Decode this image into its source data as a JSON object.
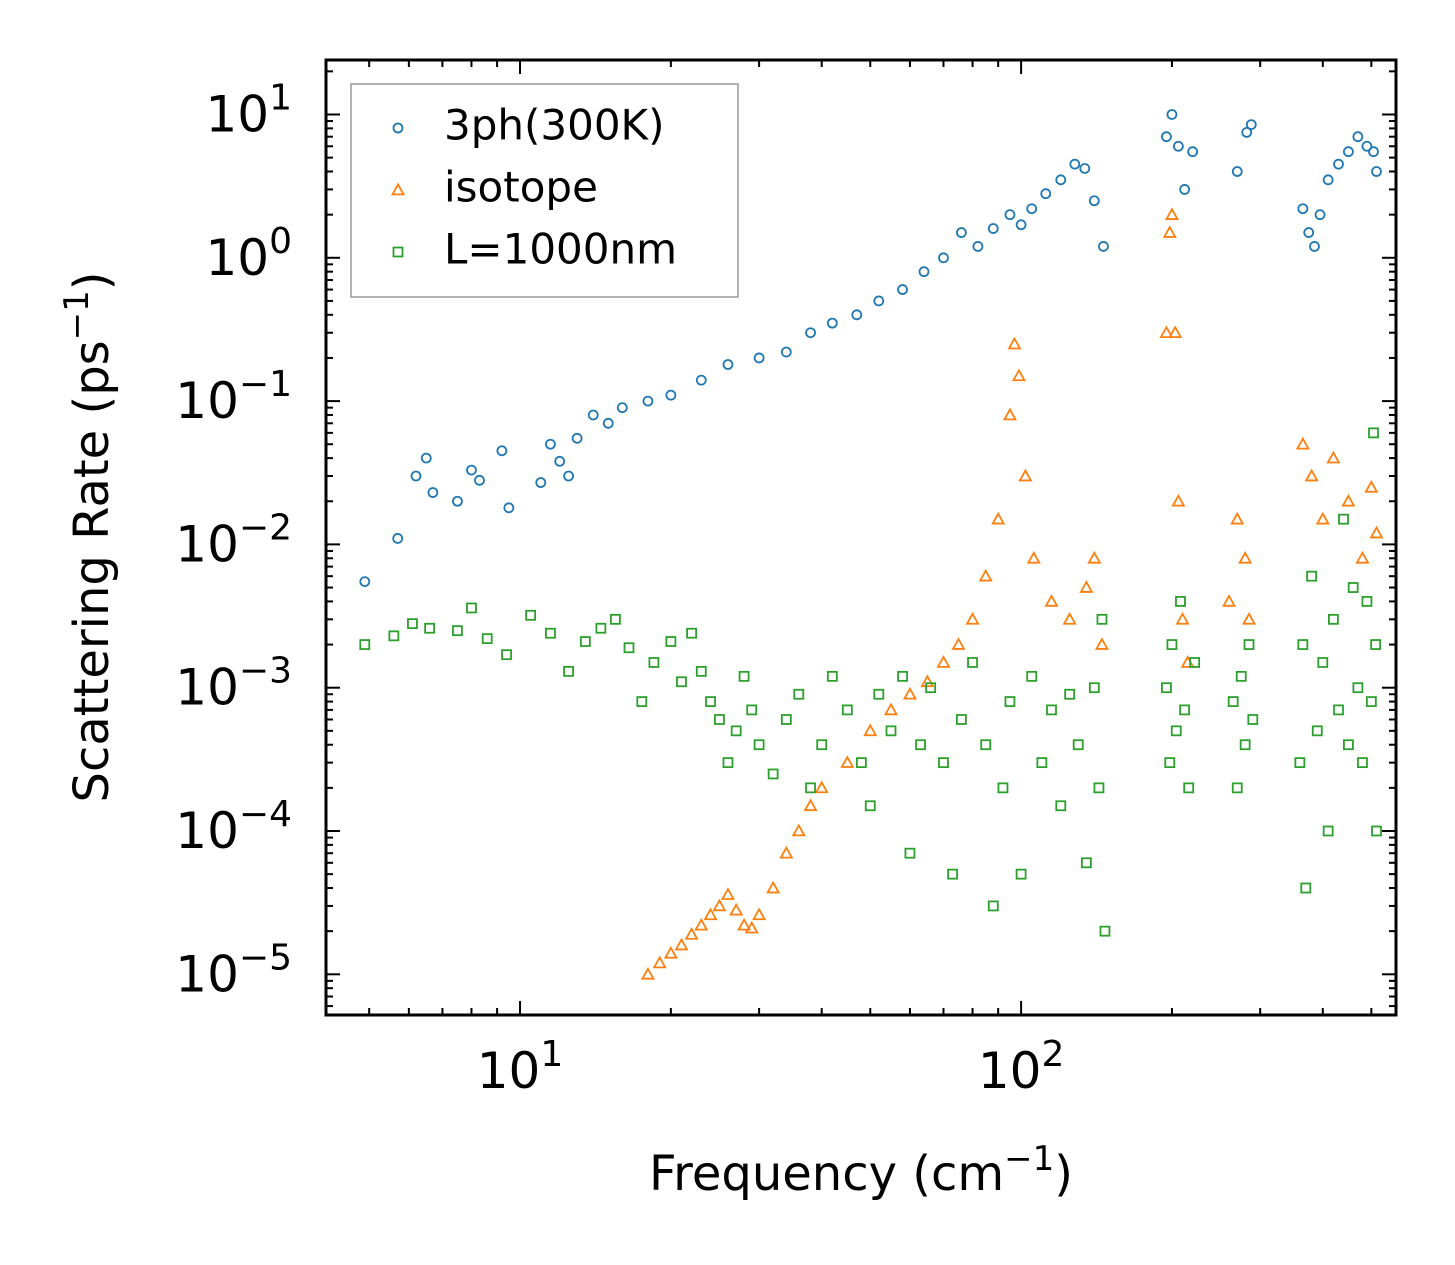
{
  "chart_data": {
    "type": "scatter",
    "xscale": "log",
    "yscale": "log",
    "xlim": [
      4.1,
      560
    ],
    "ylim": [
      5.2e-06,
      24
    ],
    "xlabel": {
      "text": "Frequency (cm",
      "sup": "−1",
      "close": ")"
    },
    "ylabel": {
      "text": "Scattering Rate (ps",
      "sup": "−1",
      "close": ")"
    },
    "x_ticks": [
      {
        "value": 10,
        "base": "10",
        "exp": "1"
      },
      {
        "value": 100,
        "base": "10",
        "exp": "2"
      }
    ],
    "y_ticks": [
      {
        "value": 10,
        "base": "10",
        "exp": "1"
      },
      {
        "value": 1,
        "base": "10",
        "exp": "0"
      },
      {
        "value": 0.1,
        "base": "10",
        "exp": "−1"
      },
      {
        "value": 0.01,
        "base": "10",
        "exp": "−2"
      },
      {
        "value": 0.001,
        "base": "10",
        "exp": "−3"
      },
      {
        "value": 0.0001,
        "base": "10",
        "exp": "−4"
      },
      {
        "value": 1e-05,
        "base": "10",
        "exp": "−5"
      }
    ],
    "legend_position": "top-left",
    "series": [
      {
        "name": "3ph(300K)",
        "marker": "circle",
        "color": "#1f77b4",
        "points": [
          [
            4.9,
            0.0055
          ],
          [
            5.7,
            0.011
          ],
          [
            6.2,
            0.03
          ],
          [
            6.5,
            0.04
          ],
          [
            6.7,
            0.023
          ],
          [
            7.5,
            0.02
          ],
          [
            8.0,
            0.033
          ],
          [
            8.3,
            0.028
          ],
          [
            9.2,
            0.045
          ],
          [
            9.5,
            0.018
          ],
          [
            11,
            0.027
          ],
          [
            11.5,
            0.05
          ],
          [
            12,
            0.038
          ],
          [
            12.5,
            0.03
          ],
          [
            13,
            0.055
          ],
          [
            14,
            0.08
          ],
          [
            15,
            0.07
          ],
          [
            16,
            0.09
          ],
          [
            18,
            0.1
          ],
          [
            20,
            0.11
          ],
          [
            23,
            0.14
          ],
          [
            26,
            0.18
          ],
          [
            30,
            0.2
          ],
          [
            34,
            0.22
          ],
          [
            38,
            0.3
          ],
          [
            42,
            0.35
          ],
          [
            47,
            0.4
          ],
          [
            52,
            0.5
          ],
          [
            58,
            0.6
          ],
          [
            64,
            0.8
          ],
          [
            70,
            1.0
          ],
          [
            76,
            1.5
          ],
          [
            82,
            1.2
          ],
          [
            88,
            1.6
          ],
          [
            95,
            2.0
          ],
          [
            100,
            1.7
          ],
          [
            105,
            2.2
          ],
          [
            112,
            2.8
          ],
          [
            120,
            3.5
          ],
          [
            128,
            4.5
          ],
          [
            134,
            4.2
          ],
          [
            140,
            2.5
          ],
          [
            146,
            1.2
          ],
          [
            195,
            7.0
          ],
          [
            200,
            10.0
          ],
          [
            206,
            6.0
          ],
          [
            212,
            3.0
          ],
          [
            220,
            5.5
          ],
          [
            270,
            4.0
          ],
          [
            282,
            7.5
          ],
          [
            288,
            8.5
          ],
          [
            365,
            2.2
          ],
          [
            375,
            1.5
          ],
          [
            385,
            1.2
          ],
          [
            395,
            2.0
          ],
          [
            410,
            3.5
          ],
          [
            430,
            4.5
          ],
          [
            450,
            5.5
          ],
          [
            470,
            7.0
          ],
          [
            490,
            6.0
          ],
          [
            505,
            5.5
          ],
          [
            512,
            4.0
          ]
        ]
      },
      {
        "name": "isotope",
        "marker": "triangle",
        "color": "#ff7f0e",
        "points": [
          [
            18,
            1e-05
          ],
          [
            19,
            1.2e-05
          ],
          [
            20,
            1.4e-05
          ],
          [
            21,
            1.6e-05
          ],
          [
            22,
            1.9e-05
          ],
          [
            23,
            2.2e-05
          ],
          [
            24,
            2.6e-05
          ],
          [
            25,
            3e-05
          ],
          [
            26,
            3.6e-05
          ],
          [
            27,
            2.8e-05
          ],
          [
            28,
            2.2e-05
          ],
          [
            29,
            2.1e-05
          ],
          [
            30,
            2.6e-05
          ],
          [
            32,
            4e-05
          ],
          [
            34,
            7e-05
          ],
          [
            36,
            0.0001
          ],
          [
            38,
            0.00015
          ],
          [
            40,
            0.0002
          ],
          [
            45,
            0.0003
          ],
          [
            50,
            0.0005
          ],
          [
            55,
            0.0007
          ],
          [
            60,
            0.0009
          ],
          [
            65,
            0.0011
          ],
          [
            70,
            0.0015
          ],
          [
            75,
            0.002
          ],
          [
            80,
            0.003
          ],
          [
            85,
            0.006
          ],
          [
            90,
            0.015
          ],
          [
            95,
            0.08
          ],
          [
            97,
            0.25
          ],
          [
            99,
            0.15
          ],
          [
            102,
            0.03
          ],
          [
            106,
            0.008
          ],
          [
            115,
            0.004
          ],
          [
            125,
            0.003
          ],
          [
            135,
            0.005
          ],
          [
            140,
            0.008
          ],
          [
            145,
            0.002
          ],
          [
            195,
            0.3
          ],
          [
            198,
            1.5
          ],
          [
            200,
            2.0
          ],
          [
            203,
            0.3
          ],
          [
            206,
            0.02
          ],
          [
            210,
            0.003
          ],
          [
            215,
            0.0015
          ],
          [
            260,
            0.004
          ],
          [
            270,
            0.015
          ],
          [
            280,
            0.008
          ],
          [
            285,
            0.003
          ],
          [
            365,
            0.05
          ],
          [
            380,
            0.03
          ],
          [
            400,
            0.015
          ],
          [
            420,
            0.04
          ],
          [
            450,
            0.02
          ],
          [
            480,
            0.008
          ],
          [
            500,
            0.025
          ],
          [
            512,
            0.012
          ]
        ]
      },
      {
        "name": "L=1000nm",
        "marker": "square",
        "color": "#2ca02c",
        "points": [
          [
            4.9,
            0.002
          ],
          [
            5.6,
            0.0023
          ],
          [
            6.1,
            0.0028
          ],
          [
            6.6,
            0.0026
          ],
          [
            7.5,
            0.0025
          ],
          [
            8.0,
            0.0036
          ],
          [
            8.6,
            0.0022
          ],
          [
            9.4,
            0.0017
          ],
          [
            10.5,
            0.0032
          ],
          [
            11.5,
            0.0024
          ],
          [
            12.5,
            0.0013
          ],
          [
            13.5,
            0.0021
          ],
          [
            14.5,
            0.0026
          ],
          [
            15.5,
            0.003
          ],
          [
            16.5,
            0.0019
          ],
          [
            17.5,
            0.0008
          ],
          [
            18.5,
            0.0015
          ],
          [
            20,
            0.0021
          ],
          [
            21,
            0.0011
          ],
          [
            22,
            0.0024
          ],
          [
            23,
            0.0013
          ],
          [
            24,
            0.0008
          ],
          [
            25,
            0.0006
          ],
          [
            26,
            0.0003
          ],
          [
            27,
            0.0005
          ],
          [
            28,
            0.0012
          ],
          [
            29,
            0.0007
          ],
          [
            30,
            0.0004
          ],
          [
            32,
            0.00025
          ],
          [
            34,
            0.0006
          ],
          [
            36,
            0.0009
          ],
          [
            38,
            0.0002
          ],
          [
            40,
            0.0004
          ],
          [
            42,
            0.0012
          ],
          [
            45,
            0.0007
          ],
          [
            48,
            0.0003
          ],
          [
            50,
            0.00015
          ],
          [
            52,
            0.0009
          ],
          [
            55,
            0.0005
          ],
          [
            58,
            0.0012
          ],
          [
            60,
            7e-05
          ],
          [
            63,
            0.0004
          ],
          [
            66,
            0.001
          ],
          [
            70,
            0.0003
          ],
          [
            73,
            5e-05
          ],
          [
            76,
            0.0006
          ],
          [
            80,
            0.0015
          ],
          [
            85,
            0.0004
          ],
          [
            88,
            3e-05
          ],
          [
            92,
            0.0002
          ],
          [
            95,
            0.0008
          ],
          [
            100,
            5e-05
          ],
          [
            105,
            0.0012
          ],
          [
            110,
            0.0003
          ],
          [
            115,
            0.0007
          ],
          [
            120,
            0.00015
          ],
          [
            125,
            0.0009
          ],
          [
            130,
            0.0004
          ],
          [
            135,
            6e-05
          ],
          [
            140,
            0.001
          ],
          [
            143,
            0.0002
          ],
          [
            145,
            0.003
          ],
          [
            147,
            2e-05
          ],
          [
            195,
            0.001
          ],
          [
            198,
            0.0003
          ],
          [
            200,
            0.002
          ],
          [
            204,
            0.0005
          ],
          [
            208,
            0.004
          ],
          [
            212,
            0.0007
          ],
          [
            216,
            0.0002
          ],
          [
            222,
            0.0015
          ],
          [
            265,
            0.0008
          ],
          [
            270,
            0.0002
          ],
          [
            275,
            0.0012
          ],
          [
            280,
            0.0004
          ],
          [
            285,
            0.002
          ],
          [
            290,
            0.0006
          ],
          [
            360,
            0.0003
          ],
          [
            365,
            0.002
          ],
          [
            370,
            4e-05
          ],
          [
            380,
            0.006
          ],
          [
            390,
            0.0005
          ],
          [
            400,
            0.0015
          ],
          [
            410,
            0.0001
          ],
          [
            420,
            0.003
          ],
          [
            430,
            0.0007
          ],
          [
            440,
            0.015
          ],
          [
            450,
            0.0004
          ],
          [
            460,
            0.005
          ],
          [
            470,
            0.001
          ],
          [
            480,
            0.0003
          ],
          [
            490,
            0.004
          ],
          [
            500,
            0.0008
          ],
          [
            505,
            0.06
          ],
          [
            510,
            0.002
          ],
          [
            512,
            0.0001
          ]
        ]
      }
    ]
  }
}
